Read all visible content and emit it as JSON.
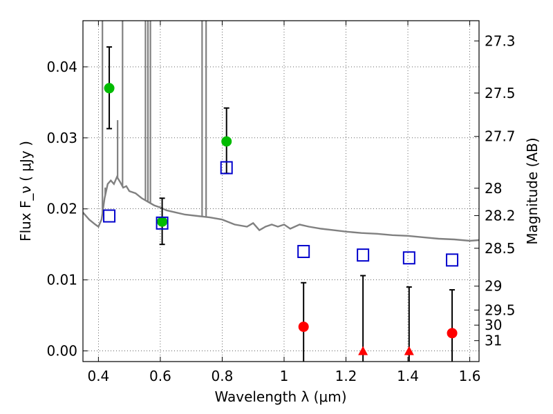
{
  "chart_data": {
    "type": "scatter",
    "xlabel": "Wavelength  λ (μm)",
    "ylabel": "Flux  F_ν  ( μJy )",
    "y2label": "Magnitude (AB)",
    "xlim": [
      0.35,
      1.63
    ],
    "ylim": [
      -0.0015,
      0.0465
    ],
    "grid": true,
    "x_ticks": [
      {
        "value": 0.4,
        "label": "0.4"
      },
      {
        "value": 0.6,
        "label": "0.6"
      },
      {
        "value": 0.8,
        "label": "0.8"
      },
      {
        "value": 1.0,
        "label": "1"
      },
      {
        "value": 1.2,
        "label": "1.2"
      },
      {
        "value": 1.4,
        "label": "1.4"
      },
      {
        "value": 1.6,
        "label": "1.6"
      }
    ],
    "y_ticks": [
      {
        "value": 0.0,
        "label": "0.00"
      },
      {
        "value": 0.01,
        "label": "0.01"
      },
      {
        "value": 0.02,
        "label": "0.02"
      },
      {
        "value": 0.03,
        "label": "0.03"
      },
      {
        "value": 0.04,
        "label": "0.04"
      }
    ],
    "y2_ticks": [
      {
        "mag": 27.3,
        "label": "27.3"
      },
      {
        "mag": 27.5,
        "label": "27.5"
      },
      {
        "mag": 27.7,
        "label": "27.7"
      },
      {
        "mag": 28.0,
        "label": "28"
      },
      {
        "mag": 28.2,
        "label": "28.2"
      },
      {
        "mag": 28.5,
        "label": "28.5"
      },
      {
        "mag": 29.0,
        "label": "29"
      },
      {
        "mag": 29.5,
        "label": "29.5"
      },
      {
        "mag": 30.0,
        "label": "30"
      },
      {
        "mag": 31.0,
        "label": "31"
      }
    ],
    "colors": {
      "detection": "#00bb00",
      "nondetection": "#ff0000",
      "model": "#0000cc",
      "spectrum": "#808080",
      "errorbar": "#000000"
    },
    "spectrum": {
      "x": [
        0.35,
        0.37,
        0.39,
        0.4,
        0.41,
        0.42,
        0.43,
        0.44,
        0.45,
        0.46,
        0.47,
        0.48,
        0.49,
        0.5,
        0.52,
        0.54,
        0.56,
        0.58,
        0.6,
        0.62,
        0.65,
        0.68,
        0.72,
        0.76,
        0.8,
        0.84,
        0.88,
        0.9,
        0.92,
        0.94,
        0.96,
        0.98,
        1.0,
        1.02,
        1.05,
        1.08,
        1.12,
        1.16,
        1.2,
        1.25,
        1.3,
        1.35,
        1.4,
        1.45,
        1.5,
        1.55,
        1.6,
        1.63
      ],
      "y": [
        0.0195,
        0.0185,
        0.0178,
        0.0175,
        0.0185,
        0.0215,
        0.0235,
        0.024,
        0.0235,
        0.0245,
        0.0238,
        0.023,
        0.0232,
        0.0225,
        0.0222,
        0.0215,
        0.021,
        0.0205,
        0.0202,
        0.0198,
        0.0195,
        0.0192,
        0.019,
        0.0188,
        0.0185,
        0.0178,
        0.0175,
        0.018,
        0.017,
        0.0175,
        0.0178,
        0.0175,
        0.0178,
        0.0172,
        0.0178,
        0.0175,
        0.0172,
        0.017,
        0.0168,
        0.0166,
        0.0165,
        0.0163,
        0.0162,
        0.016,
        0.0158,
        0.0157,
        0.0155,
        0.0156
      ]
    },
    "emission_lines": [
      {
        "x": 0.413,
        "y": 0.0475
      },
      {
        "x": 0.422,
        "y": 0.023
      },
      {
        "x": 0.462,
        "y": 0.0325
      },
      {
        "x": 0.478,
        "y": 0.0475
      },
      {
        "x": 0.552,
        "y": 0.0475
      },
      {
        "x": 0.56,
        "y": 0.0475
      },
      {
        "x": 0.568,
        "y": 0.0475
      },
      {
        "x": 0.735,
        "y": 0.0475
      },
      {
        "x": 0.748,
        "y": 0.0475
      }
    ],
    "series": [
      {
        "marker": "circle",
        "color": "#00bb00",
        "points": [
          {
            "x": 0.435,
            "y": 0.037,
            "err_lo": 0.0313,
            "err_hi": 0.0428
          },
          {
            "x": 0.606,
            "y": 0.0182,
            "err_lo": 0.015,
            "err_hi": 0.0215
          },
          {
            "x": 0.814,
            "y": 0.0295,
            "err_lo": 0.025,
            "err_hi": 0.0342
          }
        ]
      },
      {
        "marker": "circle",
        "color": "#ff0000",
        "points": [
          {
            "x": 1.063,
            "y": 0.0034,
            "err_lo": -0.002,
            "err_hi": 0.0096
          },
          {
            "x": 1.543,
            "y": 0.0025,
            "err_lo": -0.002,
            "err_hi": 0.0086
          }
        ]
      },
      {
        "marker": "triangle",
        "color": "#ff0000",
        "points": [
          {
            "x": 1.255,
            "y": 0.0,
            "err_lo": -0.002,
            "err_hi": 0.0106
          },
          {
            "x": 1.404,
            "y": 0.0,
            "err_lo": -0.002,
            "err_hi": 0.009
          }
        ]
      },
      {
        "marker": "open-square",
        "color": "#0000cc",
        "points": [
          {
            "x": 0.435,
            "y": 0.019
          },
          {
            "x": 0.606,
            "y": 0.018
          },
          {
            "x": 0.814,
            "y": 0.0258
          },
          {
            "x": 1.063,
            "y": 0.014
          },
          {
            "x": 1.255,
            "y": 0.0135
          },
          {
            "x": 1.404,
            "y": 0.0131
          },
          {
            "x": 1.543,
            "y": 0.0128
          }
        ]
      }
    ]
  }
}
